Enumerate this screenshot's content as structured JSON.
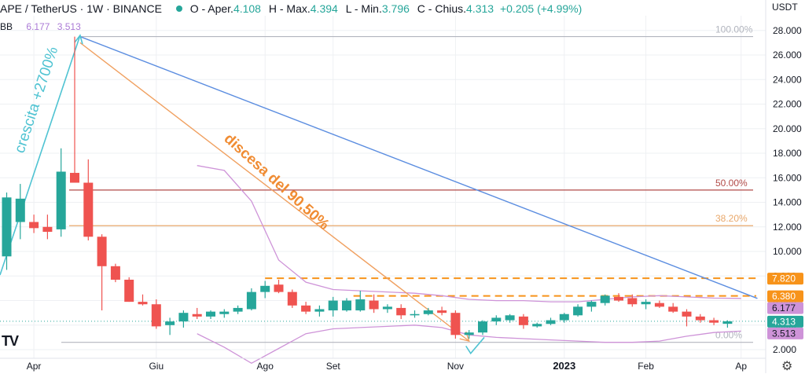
{
  "header": {
    "symbol": "APE / TetherUS · 1W · BINANCE",
    "open_label": "O - Aper.",
    "open": "4.108",
    "high_label": "H - Max.",
    "high": "4.394",
    "low_label": "L - Min.",
    "low": "3.796",
    "close_label": "C - Chius.",
    "close": "4.313",
    "change": "+0.205 (+4.99%)"
  },
  "indicator": {
    "name": "BB",
    "value_upper": "6.177",
    "value_lower": "3.513"
  },
  "currency": "USDT",
  "logo_text": "TV",
  "settings_icon": "gear-icon",
  "chart_data": {
    "type": "candlestick",
    "ylim": [
      1.3,
      29.2
    ],
    "y_ticks": [
      2,
      4,
      6,
      8,
      10,
      12,
      14,
      16,
      18,
      20,
      22,
      24,
      26,
      28
    ],
    "y_tick_labels": [
      "2.000",
      "4.000",
      "6.000",
      "8.000",
      "10.000",
      "12.000",
      "14.000",
      "16.000",
      "18.000",
      "20.000",
      "22.000",
      "24.000",
      "26.000",
      "28.000"
    ],
    "x_labels": [
      "Apr",
      "Giu",
      "Ago",
      "Set",
      "Nov",
      "2023",
      "Feb",
      "Ap"
    ],
    "x_label_index": [
      2,
      11,
      19,
      24,
      33,
      41,
      47,
      54
    ],
    "candles": [
      {
        "o": 9.6,
        "h": 14.8,
        "l": 8.5,
        "c": 14.4
      },
      {
        "o": 12.4,
        "h": 15.5,
        "l": 11.0,
        "c": 14.3
      },
      {
        "o": 12.4,
        "h": 13.0,
        "l": 11.5,
        "c": 11.9
      },
      {
        "o": 12.0,
        "h": 13.0,
        "l": 11.0,
        "c": 11.6
      },
      {
        "o": 11.8,
        "h": 18.4,
        "l": 11.2,
        "c": 16.5
      },
      {
        "o": 16.4,
        "h": 27.5,
        "l": 15.6,
        "c": 15.6
      },
      {
        "o": 15.6,
        "h": 17.5,
        "l": 10.9,
        "c": 11.2
      },
      {
        "o": 11.2,
        "h": 11.4,
        "l": 5.2,
        "c": 8.8
      },
      {
        "o": 8.8,
        "h": 9.0,
        "l": 7.5,
        "c": 7.7
      },
      {
        "o": 7.7,
        "h": 7.9,
        "l": 5.9,
        "c": 5.9
      },
      {
        "o": 5.9,
        "h": 6.5,
        "l": 5.6,
        "c": 5.7
      },
      {
        "o": 5.7,
        "h": 6.1,
        "l": 3.7,
        "c": 3.9
      },
      {
        "o": 4.0,
        "h": 4.6,
        "l": 3.2,
        "c": 4.3
      },
      {
        "o": 4.3,
        "h": 5.2,
        "l": 3.8,
        "c": 5.0
      },
      {
        "o": 4.9,
        "h": 5.4,
        "l": 4.5,
        "c": 4.7
      },
      {
        "o": 4.7,
        "h": 5.2,
        "l": 4.5,
        "c": 5.1
      },
      {
        "o": 4.9,
        "h": 5.3,
        "l": 4.6,
        "c": 5.1
      },
      {
        "o": 5.1,
        "h": 5.6,
        "l": 4.9,
        "c": 5.4
      },
      {
        "o": 5.3,
        "h": 7.0,
        "l": 5.2,
        "c": 6.7
      },
      {
        "o": 6.7,
        "h": 7.6,
        "l": 6.2,
        "c": 7.2
      },
      {
        "o": 7.3,
        "h": 7.7,
        "l": 6.6,
        "c": 6.7
      },
      {
        "o": 6.7,
        "h": 6.9,
        "l": 5.4,
        "c": 5.6
      },
      {
        "o": 5.6,
        "h": 5.9,
        "l": 4.9,
        "c": 5.1
      },
      {
        "o": 5.1,
        "h": 5.6,
        "l": 4.7,
        "c": 5.3
      },
      {
        "o": 5.2,
        "h": 6.3,
        "l": 4.7,
        "c": 6.0
      },
      {
        "o": 5.2,
        "h": 6.2,
        "l": 5.1,
        "c": 6.0
      },
      {
        "o": 5.2,
        "h": 6.8,
        "l": 5.1,
        "c": 6.1
      },
      {
        "o": 6.0,
        "h": 6.5,
        "l": 5.0,
        "c": 5.3
      },
      {
        "o": 5.3,
        "h": 5.7,
        "l": 5.0,
        "c": 5.5
      },
      {
        "o": 5.4,
        "h": 5.7,
        "l": 4.5,
        "c": 4.8
      },
      {
        "o": 4.8,
        "h": 5.2,
        "l": 4.6,
        "c": 4.9
      },
      {
        "o": 4.9,
        "h": 5.4,
        "l": 4.8,
        "c": 5.2
      },
      {
        "o": 5.2,
        "h": 5.5,
        "l": 4.8,
        "c": 5.0
      },
      {
        "o": 5.0,
        "h": 5.2,
        "l": 2.9,
        "c": 3.2
      },
      {
        "o": 3.2,
        "h": 3.6,
        "l": 2.9,
        "c": 3.4
      },
      {
        "o": 3.4,
        "h": 4.4,
        "l": 3.2,
        "c": 4.3
      },
      {
        "o": 4.3,
        "h": 4.8,
        "l": 4.0,
        "c": 4.6
      },
      {
        "o": 4.4,
        "h": 4.9,
        "l": 4.2,
        "c": 4.8
      },
      {
        "o": 4.7,
        "h": 4.9,
        "l": 3.7,
        "c": 4.0
      },
      {
        "o": 3.9,
        "h": 4.2,
        "l": 3.8,
        "c": 4.1
      },
      {
        "o": 4.1,
        "h": 4.6,
        "l": 4.0,
        "c": 4.4
      },
      {
        "o": 4.4,
        "h": 5.0,
        "l": 4.2,
        "c": 4.9
      },
      {
        "o": 4.8,
        "h": 5.7,
        "l": 4.7,
        "c": 5.5
      },
      {
        "o": 5.5,
        "h": 6.0,
        "l": 5.1,
        "c": 5.9
      },
      {
        "o": 5.8,
        "h": 6.5,
        "l": 5.6,
        "c": 6.4
      },
      {
        "o": 6.3,
        "h": 6.6,
        "l": 5.9,
        "c": 6.0
      },
      {
        "o": 6.2,
        "h": 6.5,
        "l": 5.5,
        "c": 5.7
      },
      {
        "o": 5.7,
        "h": 6.1,
        "l": 5.3,
        "c": 5.9
      },
      {
        "o": 5.8,
        "h": 6.0,
        "l": 5.4,
        "c": 5.5
      },
      {
        "o": 5.5,
        "h": 5.8,
        "l": 5.0,
        "c": 5.1
      },
      {
        "o": 5.1,
        "h": 5.3,
        "l": 3.9,
        "c": 4.7
      },
      {
        "o": 4.7,
        "h": 4.9,
        "l": 4.2,
        "c": 4.4
      },
      {
        "o": 4.4,
        "h": 4.6,
        "l": 4.0,
        "c": 4.2
      },
      {
        "o": 4.108,
        "h": 4.394,
        "l": 3.796,
        "c": 4.313
      }
    ],
    "bb_upper": [
      [
        14,
        17.0
      ],
      [
        16,
        16.6
      ],
      [
        18,
        14.1
      ],
      [
        20,
        9.3
      ],
      [
        22,
        7.5
      ],
      [
        24,
        6.9
      ],
      [
        26,
        6.8
      ],
      [
        28,
        6.7
      ],
      [
        30,
        6.6
      ],
      [
        32,
        6.4
      ],
      [
        34,
        6.1
      ],
      [
        36,
        6.0
      ],
      [
        38,
        6.0
      ],
      [
        40,
        5.9
      ],
      [
        42,
        5.9
      ],
      [
        44,
        6.1
      ],
      [
        46,
        6.3
      ],
      [
        48,
        6.4
      ],
      [
        50,
        6.3
      ],
      [
        52,
        6.2
      ],
      [
        54,
        6.177
      ]
    ],
    "bb_lower": [
      [
        14,
        3.3
      ],
      [
        16,
        2.2
      ],
      [
        18,
        0.9
      ],
      [
        20,
        2.1
      ],
      [
        22,
        3.3
      ],
      [
        24,
        3.7
      ],
      [
        26,
        3.8
      ],
      [
        28,
        3.9
      ],
      [
        30,
        4.0
      ],
      [
        32,
        3.8
      ],
      [
        34,
        3.2
      ],
      [
        36,
        3.0
      ],
      [
        38,
        2.9
      ],
      [
        40,
        2.8
      ],
      [
        42,
        2.7
      ],
      [
        44,
        2.6
      ],
      [
        46,
        2.6
      ],
      [
        48,
        2.7
      ],
      [
        50,
        3.1
      ],
      [
        52,
        3.4
      ],
      [
        54,
        3.513
      ]
    ],
    "fib_levels": [
      {
        "label": "100.00%",
        "value": 27.5,
        "color": "#b2b5be"
      },
      {
        "label": "50.00%",
        "value": 15.0,
        "color": "#b24b48"
      },
      {
        "label": "38.20%",
        "value": 12.1,
        "color": "#e9a86b"
      },
      {
        "label": "0.00%",
        "value": 2.6,
        "color": "#b2b5be"
      }
    ],
    "resistance_lines": [
      7.82,
      6.38
    ],
    "trendline_blue": {
      "from": [
        5.4,
        27.5
      ],
      "to": [
        55.2,
        6.177
      ]
    },
    "trendline_orange": {
      "from": [
        5.4,
        27.0
      ],
      "to": [
        34.0,
        2.7
      ]
    },
    "current_price": 4.313,
    "price_badges": [
      {
        "text": "7.820",
        "value": 7.82,
        "bg": "#f7931a",
        "fg": "#ffffff"
      },
      {
        "text": "6.380",
        "value": 6.38,
        "bg": "#f7931a",
        "fg": "#ffffff"
      },
      {
        "text": "6.177",
        "value": 6.177,
        "bg": "#ce93d8",
        "fg": "#131722"
      },
      {
        "text": "4.313",
        "value": 4.313,
        "bg": "#26a69a",
        "fg": "#ffffff"
      },
      {
        "text": "3.513",
        "value": 3.513,
        "bg": "#ce93d8",
        "fg": "#131722"
      }
    ],
    "annotations": [
      {
        "text": "crescita +2700%",
        "color": "#4fc3d2"
      },
      {
        "text": "discesa del 90,50%",
        "color": "#f08c33"
      }
    ],
    "colors": {
      "up": "#26a69a",
      "down": "#ef5350",
      "grid": "#eef0f3",
      "axis_text": "#131722"
    }
  }
}
